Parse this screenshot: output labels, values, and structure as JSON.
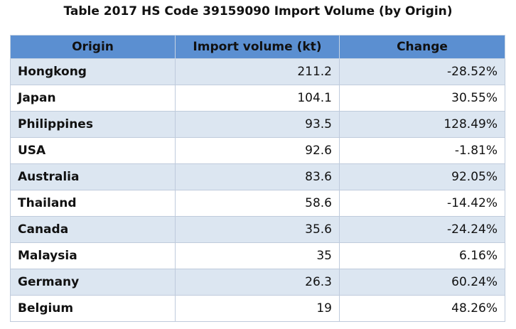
{
  "title": "Table 2017 HS Code 39159090 Import Volume (by Origin)",
  "table": {
    "header": [
      "Origin",
      "Import volume (kt)",
      "Change"
    ],
    "rows": [
      [
        "Hongkong",
        "211.2",
        "-28.52%"
      ],
      [
        "Japan",
        "104.1",
        "30.55%"
      ],
      [
        "Philippines",
        "93.5",
        "128.49%"
      ],
      [
        "USA",
        "92.6",
        "-1.81%"
      ],
      [
        "Australia",
        "83.6",
        "92.05%"
      ],
      [
        "Thailand",
        "58.6",
        "-14.42%"
      ],
      [
        "Canada",
        "35.6",
        "-24.24%"
      ],
      [
        "Malaysia",
        "35",
        "6.16%"
      ],
      [
        "Germany",
        "26.3",
        "60.24%"
      ],
      [
        "Belgium",
        "19",
        "48.26%"
      ]
    ]
  }
}
